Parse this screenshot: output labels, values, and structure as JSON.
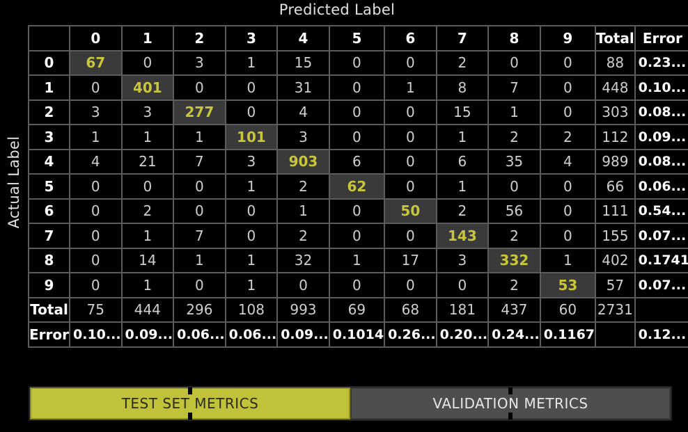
{
  "axes": {
    "x_title": "Predicted Label",
    "y_title": "Actual Label"
  },
  "matrix": {
    "corner": "",
    "columns": [
      "0",
      "1",
      "2",
      "3",
      "4",
      "5",
      "6",
      "7",
      "8",
      "9",
      "Total",
      "Error"
    ],
    "rows": [
      {
        "label": "0",
        "cells": [
          "67",
          "0",
          "3",
          "1",
          "15",
          "0",
          "0",
          "2",
          "0",
          "0"
        ],
        "total": "88",
        "error": "0.23..."
      },
      {
        "label": "1",
        "cells": [
          "0",
          "401",
          "0",
          "0",
          "31",
          "0",
          "1",
          "8",
          "7",
          "0"
        ],
        "total": "448",
        "error": "0.10..."
      },
      {
        "label": "2",
        "cells": [
          "3",
          "3",
          "277",
          "0",
          "4",
          "0",
          "0",
          "15",
          "1",
          "0"
        ],
        "total": "303",
        "error": "0.08..."
      },
      {
        "label": "3",
        "cells": [
          "1",
          "1",
          "1",
          "101",
          "3",
          "0",
          "0",
          "1",
          "2",
          "2"
        ],
        "total": "112",
        "error": "0.09..."
      },
      {
        "label": "4",
        "cells": [
          "4",
          "21",
          "7",
          "3",
          "903",
          "6",
          "0",
          "6",
          "35",
          "4"
        ],
        "total": "989",
        "error": "0.08..."
      },
      {
        "label": "5",
        "cells": [
          "0",
          "0",
          "0",
          "1",
          "2",
          "62",
          "0",
          "1",
          "0",
          "0"
        ],
        "total": "66",
        "error": "0.06..."
      },
      {
        "label": "6",
        "cells": [
          "0",
          "2",
          "0",
          "0",
          "1",
          "0",
          "50",
          "2",
          "56",
          "0"
        ],
        "total": "111",
        "error": "0.54..."
      },
      {
        "label": "7",
        "cells": [
          "0",
          "1",
          "7",
          "0",
          "2",
          "0",
          "0",
          "143",
          "2",
          "0"
        ],
        "total": "155",
        "error": "0.07..."
      },
      {
        "label": "8",
        "cells": [
          "0",
          "14",
          "1",
          "1",
          "32",
          "1",
          "17",
          "3",
          "332",
          "1"
        ],
        "total": "402",
        "error": "0.1741"
      },
      {
        "label": "9",
        "cells": [
          "0",
          "1",
          "0",
          "1",
          "0",
          "0",
          "0",
          "0",
          "2",
          "53"
        ],
        "total": "57",
        "error": "0.07..."
      }
    ],
    "total_row": {
      "label": "Total",
      "cells": [
        "75",
        "444",
        "296",
        "108",
        "993",
        "69",
        "68",
        "181",
        "437",
        "60"
      ],
      "total": "2731",
      "error": ""
    },
    "error_row": {
      "label": "Error",
      "cells": [
        "0.10...",
        "0.09...",
        "0.06...",
        "0.06...",
        "0.09...",
        "0.1014",
        "0.26...",
        "0.20...",
        "0.24...",
        "0.1167"
      ],
      "total": "",
      "error": "0.12..."
    }
  },
  "tabs": [
    {
      "label": "TEST SET METRICS",
      "active": true
    },
    {
      "label": "VALIDATION METRICS",
      "active": false
    }
  ],
  "colors": {
    "background": "#000000",
    "grid": "#5c5c5c",
    "diagonal_bg": "#3a3a3a",
    "diagonal_text": "#c8c63c",
    "active_tab": "#c0c23a",
    "inactive_tab": "#4e4e4e"
  }
}
